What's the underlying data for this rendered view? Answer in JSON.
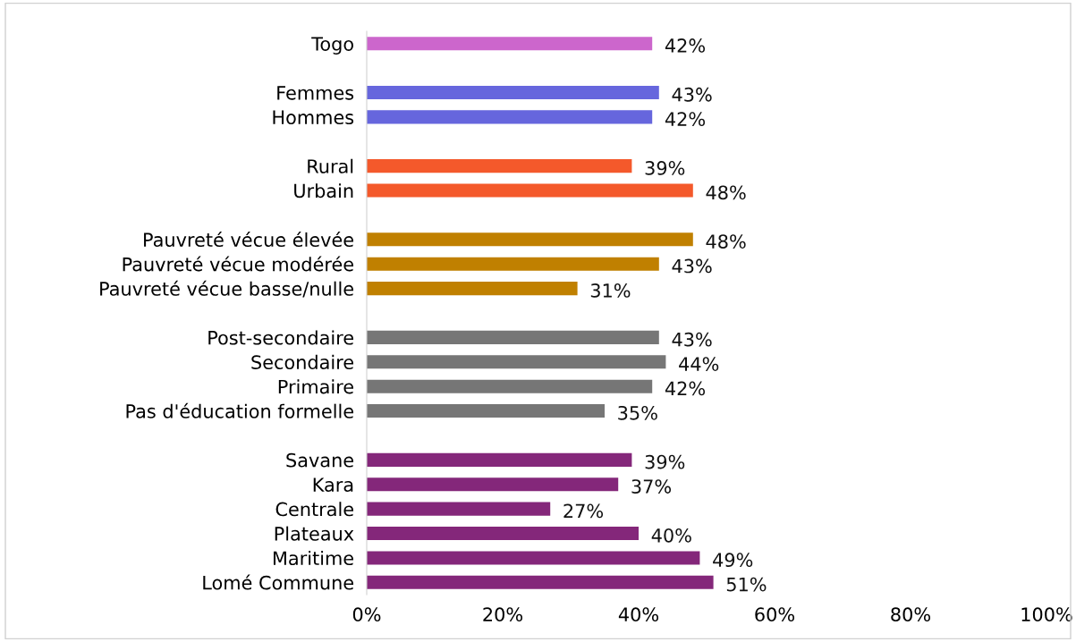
{
  "chart_data": {
    "type": "bar",
    "orientation": "horizontal",
    "value_labels": [
      "42%",
      null,
      "43%",
      "42%",
      null,
      "39%",
      "48%",
      null,
      "48%",
      "43%",
      "31%",
      null,
      "43%",
      "44%",
      "42%",
      "35%",
      null,
      "39%",
      "37%",
      "27%",
      "40%",
      "49%",
      "51%"
    ],
    "grid": false,
    "legend": false,
    "categories": [
      "Togo",
      null,
      "Femmes",
      "Hommes",
      null,
      "Rural",
      "Urbain",
      null,
      "Pauvreté vécue élevée",
      "Pauvreté vécue modérée",
      "Pauvreté vécue basse/nulle",
      null,
      "Post-secondaire",
      "Secondaire",
      "Primaire",
      "Pas d'éducation formelle",
      null,
      "Savane",
      "Kara",
      "Centrale",
      "Plateaux",
      "Maritime",
      "Lomé Commune"
    ],
    "values": [
      42,
      null,
      43,
      42,
      null,
      39,
      48,
      null,
      48,
      43,
      31,
      null,
      43,
      44,
      42,
      35,
      null,
      39,
      37,
      27,
      40,
      49,
      51
    ],
    "colors": [
      "#cc66cc",
      null,
      "#6666dd",
      "#6666dd",
      null,
      "#f4592b",
      "#f4592b",
      null,
      "#c08000",
      "#c08000",
      "#c08000",
      null,
      "#767676",
      "#767676",
      "#767676",
      "#767676",
      null,
      "#84277a",
      "#84277a",
      "#84277a",
      "#84277a",
      "#84277a",
      "#84277a"
    ],
    "xlim": [
      0,
      100
    ],
    "xticks": [
      {
        "value": 0,
        "label": "0%"
      },
      {
        "value": 20,
        "label": "20%"
      },
      {
        "value": 40,
        "label": "40%"
      },
      {
        "value": 60,
        "label": "60%"
      },
      {
        "value": 80,
        "label": "80%"
      },
      {
        "value": 100,
        "label": "100%"
      }
    ]
  }
}
